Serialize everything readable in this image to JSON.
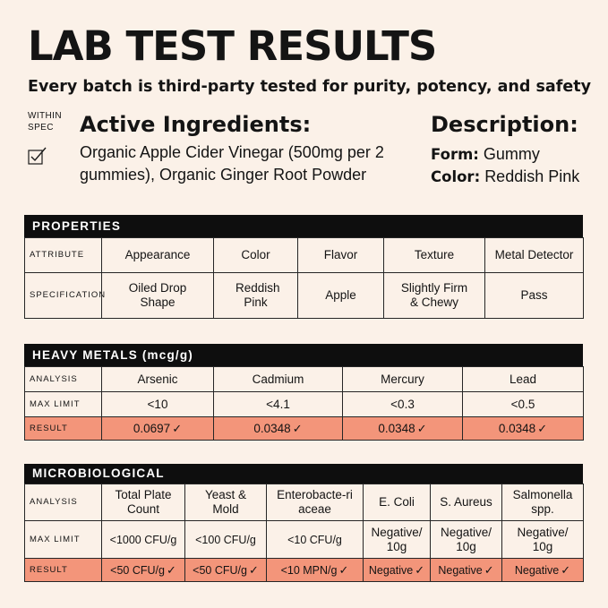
{
  "header": {
    "title": "LAB TEST RESULTS",
    "subtitle": "Every batch is third-party tested for purity, potency, and safety"
  },
  "spec_note": {
    "line1": "WITHIN",
    "line2": "SPEC",
    "icon": "checkbox-check-icon"
  },
  "active_ingredients": {
    "title": "Active Ingredients:",
    "text": "Organic Apple Cider Vinegar (500mg per 2 gummies), Organic Ginger Root Powder"
  },
  "description": {
    "title": "Description:",
    "form_label": "Form:",
    "form_value": "Gummy",
    "color_label": "Color:",
    "color_value": "Reddish Pink"
  },
  "check": "✓",
  "properties": {
    "title": "PROPERTIES",
    "row_attribute": "ATTRIBUTE",
    "row_specification": "SPECIFICATION",
    "attributes": [
      "Appearance",
      "Color",
      "Flavor",
      "Texture",
      "Metal Detector"
    ],
    "specifications": [
      "Oiled Drop Shape",
      "Reddish Pink",
      "Apple",
      "Slightly Firm & Chewy",
      "Pass"
    ]
  },
  "heavy_metals": {
    "title": "HEAVY METALS (mcg/g)",
    "row_analysis": "ANALYSIS",
    "row_max": "MAX LIMIT",
    "row_result": "RESULT",
    "analysis": [
      "Arsenic",
      "Cadmium",
      "Mercury",
      "Lead"
    ],
    "max_limit": [
      "<10",
      "<4.1",
      "<0.3",
      "<0.5"
    ],
    "result": [
      "0.0697",
      "0.0348",
      "0.0348",
      "0.0348"
    ]
  },
  "microbiological": {
    "title": "MICROBIOLOGICAL",
    "row_analysis": "ANALYSIS",
    "row_max": "MAX LIMIT",
    "row_result": "RESULT",
    "analysis": [
      "Total Plate Count",
      "Yeast & Mold",
      "Enterobacte-riaceae",
      "E. Coli",
      "S. Aureus",
      "Salmonella spp."
    ],
    "max_limit": [
      "<1000 CFU/g",
      "<100 CFU/g",
      "<10 CFU/g",
      "Negative/ 10g",
      "Negative/ 10g",
      "Negative/ 10g"
    ],
    "result": [
      "<50 CFU/g",
      "<50 CFU/g",
      "<10 MPN/g",
      "Negative",
      "Negative",
      "Negative"
    ]
  },
  "colors": {
    "background": "#fbf1e8",
    "header_bar": "#0e0e0e",
    "result_row": "#f3957a"
  }
}
